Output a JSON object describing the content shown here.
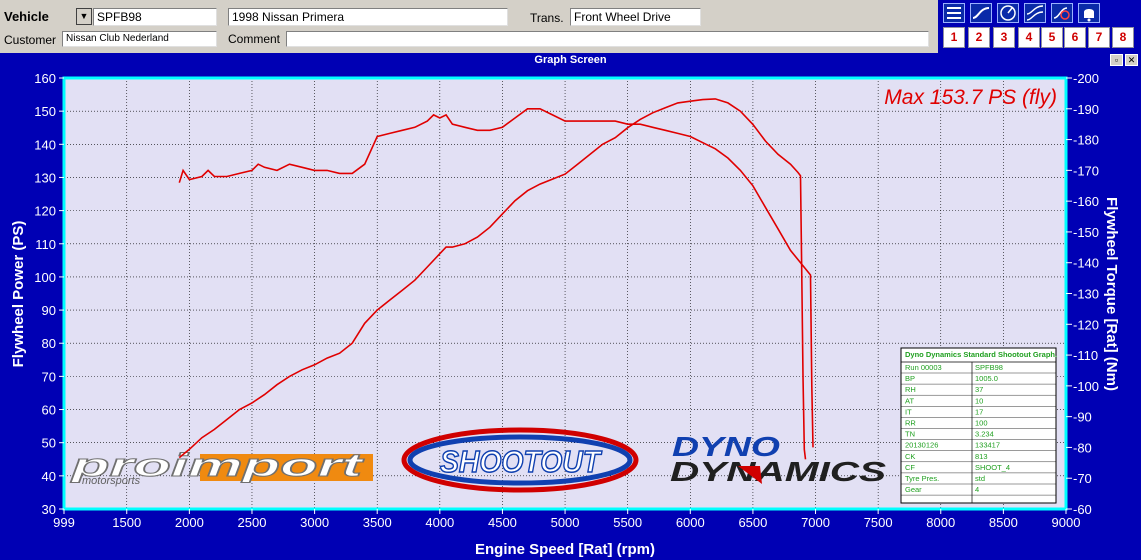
{
  "header": {
    "vehicle_label": "Vehicle",
    "vehicle_id": "SPFB98",
    "vehicle_name": "1998 Nissan Primera",
    "trans_label": "Trans.",
    "trans_value": "Front Wheel Drive",
    "customer_label": "Customer",
    "customer_value": "Nissan Club Nederland",
    "comment_label": "Comment",
    "comment_value": ""
  },
  "toolbar": {
    "icons": [
      "menu-icon",
      "power-curve-icon",
      "gauge-icon",
      "dual-curve-icon",
      "clock-icon",
      "bell-icon"
    ],
    "numbers": [
      "1",
      "2",
      "3",
      "4",
      "5",
      "6",
      "7",
      "8"
    ],
    "number_color": "#d00000"
  },
  "window": {
    "title": "Graph Screen"
  },
  "chart_data": {
    "type": "line",
    "title": "Max 153.7 PS (fly)",
    "xlabel": "Engine Speed [Rat] (rpm)",
    "ylabel": "Flywheel Power (PS)",
    "y2label": "Flywheel Torque [Rat] (Nm)",
    "xlim": [
      999,
      9000
    ],
    "ylim": [
      30,
      160
    ],
    "y2lim": [
      60,
      200
    ],
    "x_ticks": [
      "999",
      "1500",
      "2000",
      "2500",
      "3000",
      "3500",
      "4000",
      "4500",
      "5000",
      "5500",
      "6000",
      "6500",
      "7000",
      "7500",
      "8000",
      "8500",
      "9000"
    ],
    "y_ticks": [
      "30",
      "40",
      "50",
      "60",
      "70",
      "80",
      "90",
      "100",
      "110",
      "120",
      "130",
      "140",
      "150",
      "160"
    ],
    "y2_ticks": [
      "60",
      "70",
      "80",
      "90",
      "100",
      "110",
      "120",
      "130",
      "140",
      "150",
      "160",
      "170",
      "180",
      "190",
      "200"
    ],
    "grid": true,
    "plot_bg": "#e2e0f4",
    "frame_color": "#00ffff",
    "axis_text_color": "#ffffff",
    "series": [
      {
        "name": "Power",
        "axis": "left",
        "color": "#e00000",
        "points": [
          [
            1920,
            45.5
          ],
          [
            2000,
            48
          ],
          [
            2100,
            51.5
          ],
          [
            2200,
            54
          ],
          [
            2300,
            57
          ],
          [
            2400,
            60
          ],
          [
            2500,
            62
          ],
          [
            2600,
            64.5
          ],
          [
            2700,
            67.5
          ],
          [
            2800,
            70
          ],
          [
            2900,
            72
          ],
          [
            3000,
            73.5
          ],
          [
            3100,
            75.5
          ],
          [
            3200,
            77
          ],
          [
            3300,
            80
          ],
          [
            3400,
            86
          ],
          [
            3500,
            90
          ],
          [
            3600,
            93
          ],
          [
            3700,
            96
          ],
          [
            3800,
            99
          ],
          [
            3900,
            103
          ],
          [
            4000,
            107
          ],
          [
            4050,
            109
          ],
          [
            4100,
            109
          ],
          [
            4200,
            110
          ],
          [
            4300,
            112
          ],
          [
            4400,
            115
          ],
          [
            4500,
            119
          ],
          [
            4600,
            123
          ],
          [
            4700,
            126
          ],
          [
            4800,
            128
          ],
          [
            4900,
            129.5
          ],
          [
            5000,
            131
          ],
          [
            5100,
            134
          ],
          [
            5200,
            137
          ],
          [
            5300,
            140
          ],
          [
            5400,
            142
          ],
          [
            5500,
            145
          ],
          [
            5600,
            147.5
          ],
          [
            5700,
            149.5
          ],
          [
            5800,
            151
          ],
          [
            5900,
            152.5
          ],
          [
            6000,
            153
          ],
          [
            6100,
            153.5
          ],
          [
            6200,
            153.7
          ],
          [
            6300,
            152.5
          ],
          [
            6400,
            150
          ],
          [
            6500,
            146
          ],
          [
            6600,
            141
          ],
          [
            6700,
            137
          ],
          [
            6800,
            134
          ],
          [
            6860,
            131.5
          ],
          [
            6880,
            130.5
          ],
          [
            6890,
            100
          ],
          [
            6900,
            70
          ],
          [
            6910,
            48
          ],
          [
            6920,
            45
          ]
        ]
      },
      {
        "name": "Torque",
        "axis": "right",
        "color": "#e00000",
        "points": [
          [
            1920,
            166
          ],
          [
            1950,
            170
          ],
          [
            2000,
            167
          ],
          [
            2100,
            168
          ],
          [
            2150,
            170
          ],
          [
            2200,
            168
          ],
          [
            2300,
            168
          ],
          [
            2400,
            169
          ],
          [
            2500,
            170
          ],
          [
            2550,
            172
          ],
          [
            2600,
            171
          ],
          [
            2700,
            170
          ],
          [
            2800,
            172
          ],
          [
            2900,
            171
          ],
          [
            3000,
            170
          ],
          [
            3100,
            170
          ],
          [
            3200,
            169
          ],
          [
            3300,
            169
          ],
          [
            3400,
            172
          ],
          [
            3500,
            181
          ],
          [
            3600,
            182
          ],
          [
            3700,
            183
          ],
          [
            3800,
            184
          ],
          [
            3900,
            186
          ],
          [
            3950,
            188
          ],
          [
            4000,
            187
          ],
          [
            4050,
            188
          ],
          [
            4100,
            185
          ],
          [
            4200,
            184
          ],
          [
            4300,
            183
          ],
          [
            4400,
            183
          ],
          [
            4500,
            184
          ],
          [
            4600,
            187
          ],
          [
            4700,
            190
          ],
          [
            4800,
            190
          ],
          [
            4900,
            188
          ],
          [
            5000,
            186
          ],
          [
            5100,
            186
          ],
          [
            5200,
            186
          ],
          [
            5300,
            186
          ],
          [
            5400,
            186
          ],
          [
            5500,
            185
          ],
          [
            5600,
            185
          ],
          [
            5700,
            184
          ],
          [
            5800,
            183
          ],
          [
            5900,
            182
          ],
          [
            6000,
            181
          ],
          [
            6100,
            179
          ],
          [
            6200,
            177
          ],
          [
            6300,
            174
          ],
          [
            6400,
            170
          ],
          [
            6500,
            165
          ],
          [
            6600,
            158
          ],
          [
            6700,
            151
          ],
          [
            6800,
            144
          ],
          [
            6900,
            139
          ],
          [
            6960,
            136
          ],
          [
            6970,
            100
          ],
          [
            6980,
            80
          ]
        ]
      }
    ],
    "info_table": {
      "title": "Dyno Dynamics Standard Shootout Graph.",
      "rows": [
        [
          "Run 00003",
          "SPFB98"
        ],
        [
          "BP",
          "1005.0"
        ],
        [
          "RH",
          "37"
        ],
        [
          "AT",
          "10"
        ],
        [
          "IT",
          "17"
        ],
        [
          "RR",
          "100"
        ],
        [
          "TN",
          "3.234"
        ],
        [
          "20130126",
          "133417"
        ],
        [
          "CK",
          "813"
        ],
        [
          "CF",
          "SHOOT_4"
        ],
        [
          "Tyre Pres.",
          "std"
        ],
        [
          "Gear",
          "4"
        ]
      ]
    },
    "logos": {
      "proimport": "proimport",
      "proimport_sub": "motorsports",
      "shootout": "SHOOTOUT",
      "dyno1": "DYNO",
      "dyno2": "DYNAMICS"
    }
  }
}
